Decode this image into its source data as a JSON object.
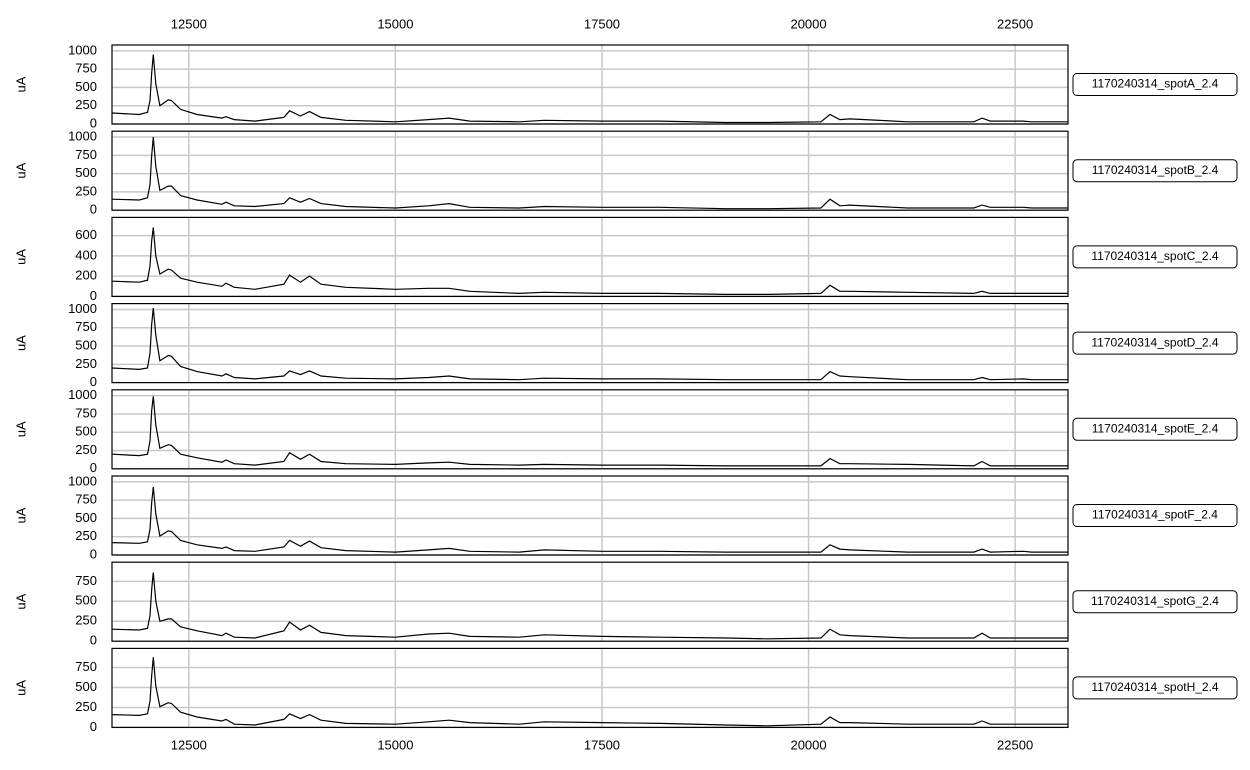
{
  "chart_data": [
    {
      "type": "line",
      "y_label": "uA",
      "x": [
        11570,
        11900,
        12000,
        12030,
        12050,
        12070,
        12100,
        12150,
        12250,
        12290,
        12400,
        12600,
        12900,
        12950,
        13050,
        13300,
        13650,
        13720,
        13850,
        13960,
        14100,
        14400,
        15000,
        15400,
        15650,
        15900,
        16500,
        16800,
        17500,
        18200,
        19000,
        19500,
        20150,
        20260,
        20380,
        20500,
        21200,
        22000,
        22100,
        22200,
        22600,
        22700,
        23140
      ],
      "series": [
        {
          "name": "1170240314_spotA_2.4",
          "color": "#000000",
          "values": [
            150,
            130,
            160,
            320,
            700,
            950,
            550,
            250,
            330,
            320,
            200,
            130,
            80,
            100,
            60,
            40,
            90,
            180,
            110,
            170,
            90,
            50,
            30,
            60,
            80,
            40,
            30,
            50,
            40,
            40,
            20,
            20,
            30,
            130,
            60,
            70,
            30,
            30,
            80,
            40,
            40,
            30,
            30
          ]
        }
      ],
      "xlim": [
        11570,
        23140
      ],
      "ylim": [
        0,
        1080
      ],
      "xticks": [
        12500,
        15000,
        17500,
        20000,
        22500
      ],
      "yticks": [
        0,
        250,
        500,
        750,
        1000
      ],
      "grid": true
    },
    {
      "type": "line",
      "y_label": "uA",
      "x": [
        11570,
        11900,
        12000,
        12030,
        12050,
        12070,
        12100,
        12150,
        12250,
        12290,
        12400,
        12600,
        12900,
        12950,
        13050,
        13300,
        13650,
        13720,
        13850,
        13960,
        14100,
        14400,
        15000,
        15400,
        15650,
        15900,
        16500,
        16800,
        17500,
        18200,
        19000,
        19500,
        20150,
        20260,
        20380,
        20500,
        21200,
        22000,
        22100,
        22200,
        22600,
        22700,
        23140
      ],
      "series": [
        {
          "name": "1170240314_spotB_2.4",
          "color": "#000000",
          "values": [
            150,
            140,
            170,
            350,
            750,
            1000,
            600,
            270,
            330,
            330,
            200,
            140,
            80,
            110,
            60,
            50,
            90,
            170,
            110,
            160,
            90,
            50,
            30,
            60,
            90,
            40,
            30,
            50,
            40,
            40,
            20,
            20,
            30,
            150,
            60,
            70,
            30,
            30,
            70,
            40,
            40,
            30,
            30
          ]
        }
      ],
      "xlim": [
        11570,
        23140
      ],
      "ylim": [
        0,
        1080
      ],
      "xticks": [
        12500,
        15000,
        17500,
        20000,
        22500
      ],
      "yticks": [
        0,
        250,
        500,
        750,
        1000
      ],
      "grid": true
    },
    {
      "type": "line",
      "y_label": "uA",
      "x": [
        11570,
        11900,
        12000,
        12030,
        12050,
        12070,
        12100,
        12150,
        12250,
        12290,
        12400,
        12600,
        12900,
        12950,
        13050,
        13300,
        13650,
        13720,
        13850,
        13960,
        14100,
        14400,
        15000,
        15400,
        15650,
        15900,
        16500,
        16800,
        17500,
        18200,
        19000,
        19500,
        20150,
        20260,
        20380,
        20500,
        21200,
        22000,
        22100,
        22200,
        22600,
        22700,
        23140
      ],
      "series": [
        {
          "name": "1170240314_spotC_2.4",
          "color": "#000000",
          "values": [
            150,
            140,
            160,
            300,
            550,
            680,
            400,
            220,
            270,
            260,
            180,
            140,
            100,
            130,
            90,
            70,
            120,
            210,
            140,
            200,
            120,
            90,
            70,
            80,
            80,
            50,
            30,
            40,
            30,
            30,
            20,
            20,
            30,
            110,
            50,
            50,
            40,
            30,
            50,
            30,
            30,
            30,
            30
          ]
        }
      ],
      "xlim": [
        11570,
        23140
      ],
      "ylim": [
        0,
        780
      ],
      "xticks": [
        12500,
        15000,
        17500,
        20000,
        22500
      ],
      "yticks": [
        0,
        200,
        400,
        600
      ],
      "grid": true
    },
    {
      "type": "line",
      "y_label": "uA",
      "x": [
        11570,
        11900,
        12000,
        12030,
        12050,
        12070,
        12100,
        12150,
        12250,
        12290,
        12400,
        12600,
        12900,
        12950,
        13050,
        13300,
        13650,
        13720,
        13850,
        13960,
        14100,
        14400,
        15000,
        15400,
        15650,
        15900,
        16500,
        16800,
        17500,
        18200,
        19000,
        19500,
        20150,
        20260,
        20380,
        20500,
        21200,
        22000,
        22100,
        22200,
        22600,
        22700,
        23140
      ],
      "series": [
        {
          "name": "1170240314_spotD_2.4",
          "color": "#000000",
          "values": [
            200,
            180,
            200,
            400,
            800,
            1020,
            650,
            300,
            370,
            360,
            220,
            150,
            90,
            120,
            70,
            50,
            90,
            160,
            110,
            160,
            90,
            60,
            50,
            70,
            90,
            50,
            40,
            60,
            50,
            50,
            40,
            40,
            40,
            150,
            90,
            80,
            40,
            40,
            70,
            40,
            50,
            40,
            40
          ]
        }
      ],
      "xlim": [
        11570,
        23140
      ],
      "ylim": [
        0,
        1080
      ],
      "xticks": [
        12500,
        15000,
        17500,
        20000,
        22500
      ],
      "yticks": [
        0,
        250,
        500,
        750,
        1000
      ],
      "grid": true
    },
    {
      "type": "line",
      "y_label": "uA",
      "x": [
        11570,
        11900,
        12000,
        12030,
        12050,
        12070,
        12100,
        12150,
        12250,
        12290,
        12400,
        12600,
        12900,
        12950,
        13050,
        13300,
        13650,
        13720,
        13850,
        13960,
        14100,
        14400,
        15000,
        15400,
        15650,
        15900,
        16500,
        16800,
        17500,
        18200,
        19000,
        19500,
        20150,
        20260,
        20380,
        20500,
        21200,
        22000,
        22100,
        22200,
        22600,
        22700,
        23140
      ],
      "series": [
        {
          "name": "1170240314_spotE_2.4",
          "color": "#000000",
          "values": [
            200,
            180,
            200,
            380,
            800,
            990,
            600,
            280,
            330,
            320,
            200,
            150,
            90,
            120,
            70,
            50,
            100,
            220,
            130,
            200,
            100,
            70,
            60,
            80,
            90,
            60,
            50,
            60,
            50,
            50,
            40,
            40,
            40,
            140,
            70,
            70,
            60,
            40,
            100,
            40,
            40,
            40,
            40
          ]
        }
      ],
      "xlim": [
        11570,
        23140
      ],
      "ylim": [
        0,
        1080
      ],
      "xticks": [
        12500,
        15000,
        17500,
        20000,
        22500
      ],
      "yticks": [
        0,
        250,
        500,
        750,
        1000
      ],
      "grid": true
    },
    {
      "type": "line",
      "y_label": "uA",
      "x": [
        11570,
        11900,
        12000,
        12030,
        12050,
        12070,
        12100,
        12150,
        12250,
        12290,
        12400,
        12600,
        12900,
        12950,
        13050,
        13300,
        13650,
        13720,
        13850,
        13960,
        14100,
        14400,
        15000,
        15400,
        15650,
        15900,
        16500,
        16800,
        17500,
        18200,
        19000,
        19500,
        20150,
        20260,
        20380,
        20500,
        21200,
        22000,
        22100,
        22200,
        22600,
        22700,
        23140
      ],
      "series": [
        {
          "name": "1170240314_spotF_2.4",
          "color": "#000000",
          "values": [
            170,
            160,
            180,
            350,
            720,
            930,
            560,
            260,
            330,
            320,
            200,
            140,
            90,
            110,
            60,
            50,
            110,
            200,
            120,
            190,
            100,
            60,
            40,
            70,
            90,
            50,
            40,
            70,
            50,
            50,
            40,
            40,
            40,
            140,
            80,
            70,
            40,
            40,
            80,
            40,
            50,
            40,
            40
          ]
        }
      ],
      "xlim": [
        11570,
        23140
      ],
      "ylim": [
        0,
        1080
      ],
      "xticks": [
        12500,
        15000,
        17500,
        20000,
        22500
      ],
      "yticks": [
        0,
        250,
        500,
        750,
        1000
      ],
      "grid": true
    },
    {
      "type": "line",
      "y_label": "uA",
      "x": [
        11570,
        11900,
        12000,
        12030,
        12050,
        12070,
        12100,
        12150,
        12250,
        12290,
        12400,
        12600,
        12900,
        12950,
        13050,
        13300,
        13650,
        13720,
        13850,
        13960,
        14100,
        14400,
        15000,
        15400,
        15650,
        15900,
        16500,
        16800,
        17500,
        18200,
        19000,
        19500,
        20150,
        20260,
        20380,
        20500,
        21200,
        22000,
        22100,
        22200,
        22600,
        22700,
        23140
      ],
      "series": [
        {
          "name": "1170240314_spotG_2.4",
          "color": "#000000",
          "values": [
            150,
            140,
            160,
            320,
            650,
            860,
            500,
            250,
            280,
            280,
            180,
            130,
            70,
            100,
            50,
            40,
            130,
            240,
            140,
            200,
            110,
            70,
            50,
            90,
            100,
            60,
            50,
            80,
            60,
            50,
            40,
            30,
            40,
            150,
            80,
            70,
            40,
            40,
            100,
            40,
            40,
            40,
            40
          ]
        }
      ],
      "xlim": [
        11570,
        23140
      ],
      "ylim": [
        0,
        990
      ],
      "xticks": [
        12500,
        15000,
        17500,
        20000,
        22500
      ],
      "yticks": [
        0,
        250,
        500,
        750
      ],
      "grid": true
    },
    {
      "type": "line",
      "y_label": "uA",
      "x": [
        11570,
        11900,
        12000,
        12030,
        12050,
        12070,
        12100,
        12150,
        12250,
        12290,
        12400,
        12600,
        12900,
        12950,
        13050,
        13300,
        13650,
        13720,
        13850,
        13960,
        14100,
        14400,
        15000,
        15400,
        15650,
        15900,
        16500,
        16800,
        17500,
        18200,
        19000,
        19500,
        20150,
        20260,
        20380,
        20500,
        21200,
        22000,
        22100,
        22200,
        22600,
        22700,
        23140
      ],
      "series": [
        {
          "name": "1170240314_spotH_2.4",
          "color": "#000000",
          "values": [
            160,
            150,
            170,
            330,
            650,
            880,
            520,
            260,
            310,
            300,
            190,
            130,
            80,
            100,
            40,
            30,
            100,
            170,
            110,
            160,
            90,
            50,
            40,
            70,
            90,
            60,
            40,
            70,
            60,
            50,
            30,
            20,
            40,
            130,
            60,
            60,
            40,
            40,
            80,
            40,
            40,
            40,
            40
          ]
        }
      ],
      "xlim": [
        11570,
        23140
      ],
      "ylim": [
        0,
        990
      ],
      "xticks": [
        12500,
        15000,
        17500,
        20000,
        22500
      ],
      "yticks": [
        0,
        250,
        500,
        750
      ],
      "grid": true
    }
  ]
}
